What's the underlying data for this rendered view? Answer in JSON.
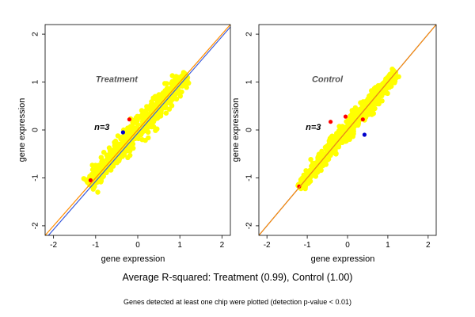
{
  "captions": {
    "main": "Average R-squared: Treatment (0.99), Control (1.00)",
    "sub": "Genes detected at least one chip were plotted (detection p-value < 0.01)"
  },
  "colors": {
    "points_main": "#ffff00",
    "points_hi": "#ff0000",
    "points_lo": "#0000cc",
    "identity_line": "#ff8c00",
    "fit_line": "#3b5bdb",
    "annotation_text": "#555555"
  },
  "chart_data": [
    {
      "type": "scatter",
      "panel_label": "Treatment",
      "n_label": "n=3",
      "xlabel": "gene expression",
      "ylabel": "gene expression",
      "xlim": [
        -2.2,
        2.2
      ],
      "ylim": [
        -2.2,
        2.2
      ],
      "x_ticks": [
        -2,
        -1,
        0,
        1,
        2
      ],
      "y_ticks": [
        -2,
        -1,
        0,
        1,
        2
      ],
      "x_tick_labels": [
        "-2",
        "-1",
        "0",
        "1",
        "2"
      ],
      "y_tick_labels": [
        "-2",
        "-1",
        "0",
        "1",
        "2"
      ],
      "identity_line": [
        [
          -2.2,
          -2.2
        ],
        [
          2.2,
          2.2
        ]
      ],
      "fit_line": [
        [
          -2.2,
          -2.28
        ],
        [
          2.2,
          2.15
        ]
      ],
      "cloud": {
        "x_range": [
          -1.15,
          1.15
        ],
        "spread": 0.09,
        "center_offset": 0.0
      },
      "outliers": [
        {
          "x": -0.2,
          "y": 0.22,
          "color": "red"
        },
        {
          "x": -1.12,
          "y": -1.05,
          "color": "red"
        },
        {
          "x": -0.35,
          "y": -0.05,
          "color": "blue"
        }
      ]
    },
    {
      "type": "scatter",
      "panel_label": "Control",
      "n_label": "n=3",
      "xlabel": "gene expression",
      "ylabel": "gene expression",
      "xlim": [
        -2.2,
        2.2
      ],
      "ylim": [
        -2.2,
        2.2
      ],
      "x_ticks": [
        -2,
        -1,
        0,
        1,
        2
      ],
      "y_ticks": [
        -2,
        -1,
        0,
        1,
        2
      ],
      "x_tick_labels": [
        "-2",
        "-1",
        "0",
        "1",
        "2"
      ],
      "y_tick_labels": [
        "-2",
        "-1",
        "0",
        "1",
        "2"
      ],
      "identity_line": [
        [
          -2.2,
          -2.2
        ],
        [
          2.2,
          2.2
        ]
      ],
      "fit_line": [
        [
          -2.2,
          -2.2
        ],
        [
          2.2,
          2.2
        ]
      ],
      "cloud": {
        "x_range": [
          -1.2,
          1.2
        ],
        "spread": 0.07,
        "center_offset": 0.0
      },
      "outliers": [
        {
          "x": -0.05,
          "y": 0.28,
          "color": "red"
        },
        {
          "x": -0.42,
          "y": 0.17,
          "color": "red"
        },
        {
          "x": 0.38,
          "y": 0.22,
          "color": "red"
        },
        {
          "x": 0.42,
          "y": -0.1,
          "color": "blue"
        },
        {
          "x": -1.2,
          "y": -1.18,
          "color": "red"
        }
      ]
    }
  ]
}
